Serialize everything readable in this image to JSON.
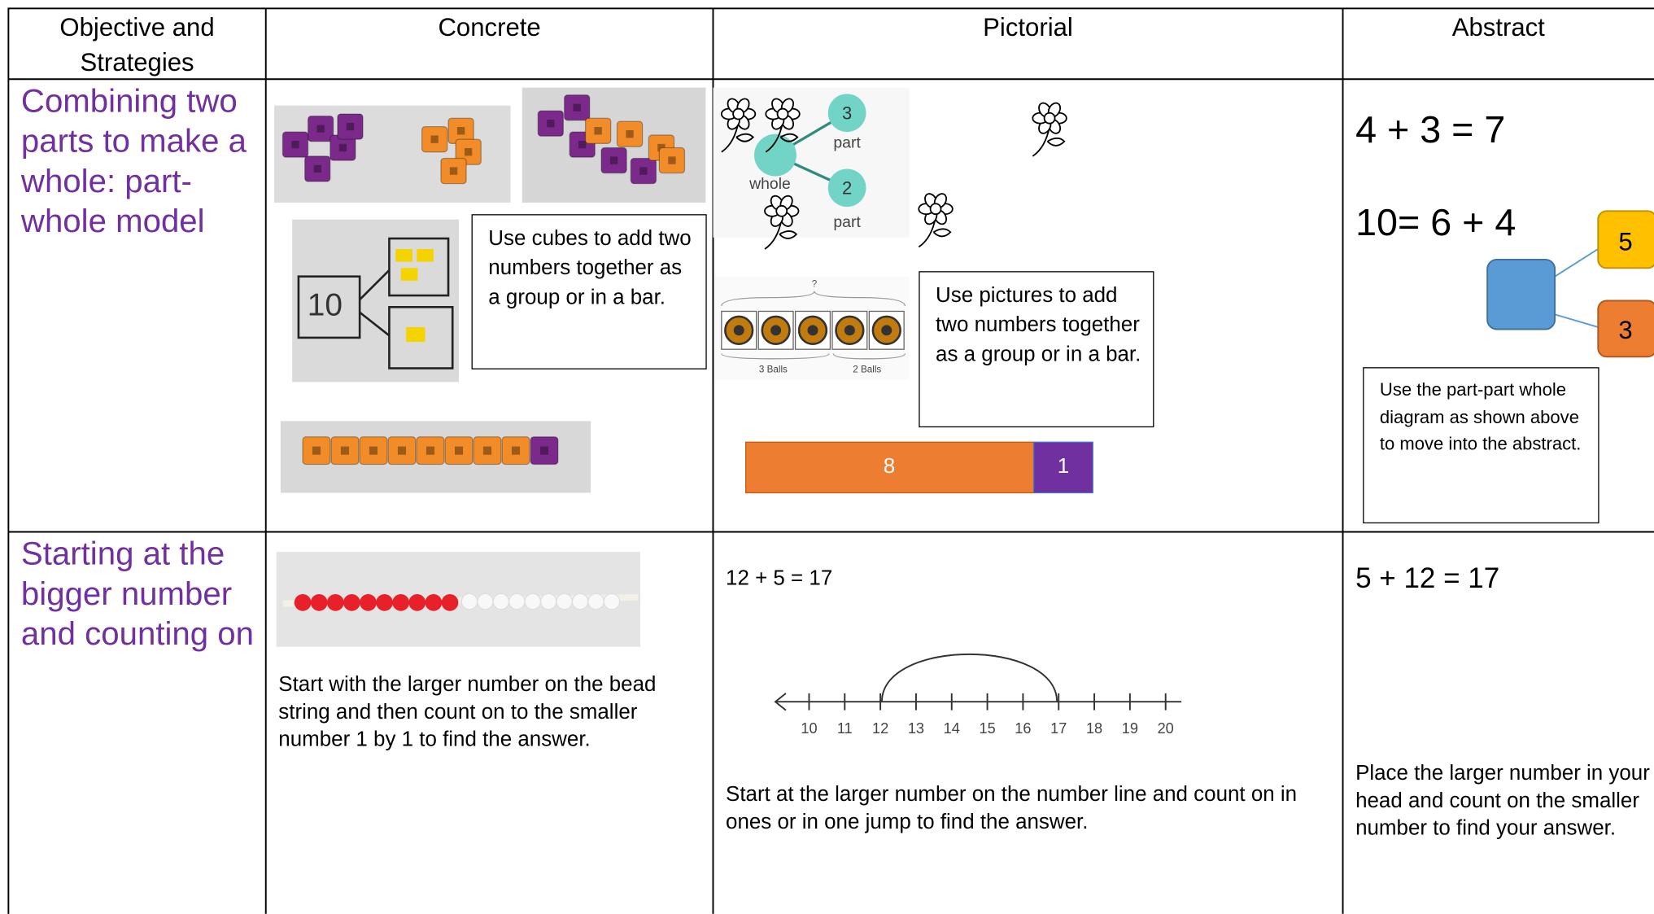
{
  "table": {
    "header": [
      "Objective and Strategies",
      "Concrete",
      "Pictorial",
      "Abstract"
    ],
    "rows": [
      {
        "objective": "Combining two parts to make a whole: part-whole model",
        "concrete": {
          "photo_label": "10",
          "note": "Use cubes to add two numbers together as a group or in a bar."
        },
        "pictorial": {
          "diagram": {
            "top": "3",
            "top_label": "part",
            "whole_label": "whole",
            "bottom": "2",
            "bottom_label": "part"
          },
          "balls": {
            "question": "?",
            "left": "3 Balls",
            "right": "2 Balls"
          },
          "note": "Use pictures to add two numbers together as a group or in a bar.",
          "bar": [
            "8",
            "1"
          ]
        },
        "abstract": {
          "equations": [
            "4 + 3 = 7",
            "10= 6 + 4"
          ],
          "parts": [
            "5",
            "3"
          ],
          "note": "Use the part-part whole diagram as shown above to move into the abstract."
        }
      },
      {
        "objective": "Starting at the bigger number and counting on",
        "concrete": {
          "note": "Start with the larger number on the bead string and then count on to the smaller number 1 by 1 to find the answer."
        },
        "pictorial": {
          "equation": "12 + 5 = 17",
          "number_line": [
            10,
            11,
            12,
            13,
            14,
            15,
            16,
            17,
            18,
            19,
            20
          ],
          "note": "Start at the larger number on the number line and count on in ones or in one jump to find the answer."
        },
        "abstract": {
          "equation": "5 + 12 = 17",
          "note": "Place the larger number in your head and count on the smaller number to find your answer."
        }
      }
    ]
  }
}
